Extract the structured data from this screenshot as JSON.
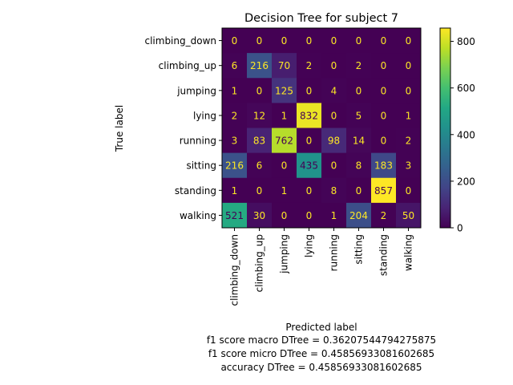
{
  "chart_data": {
    "type": "heatmap",
    "title": "Decision Tree for subject 7",
    "xlabel": "Predicted label",
    "ylabel": "True label",
    "labels": [
      "climbing_down",
      "climbing_up",
      "jumping",
      "lying",
      "running",
      "sitting",
      "standing",
      "walking"
    ],
    "matrix": [
      [
        0,
        0,
        0,
        0,
        0,
        0,
        0,
        0
      ],
      [
        6,
        216,
        70,
        2,
        0,
        2,
        0,
        0
      ],
      [
        1,
        0,
        125,
        0,
        4,
        0,
        0,
        0
      ],
      [
        2,
        12,
        1,
        832,
        0,
        5,
        0,
        1
      ],
      [
        3,
        83,
        762,
        0,
        98,
        14,
        0,
        2
      ],
      [
        216,
        6,
        0,
        435,
        0,
        8,
        183,
        3
      ],
      [
        1,
        0,
        1,
        0,
        8,
        0,
        857,
        0
      ],
      [
        521,
        30,
        0,
        0,
        1,
        204,
        2,
        50
      ]
    ],
    "colorbar": {
      "min": 0,
      "max": 857,
      "ticks": [
        0,
        200,
        400,
        600,
        800
      ],
      "colormap": "viridis"
    },
    "footer_lines": [
      "f1 score macro DTree = 0.36207544794275875",
      "f1 score micro DTree = 0.45856933081602685",
      "accuracy DTree = 0.45856933081602685"
    ]
  }
}
